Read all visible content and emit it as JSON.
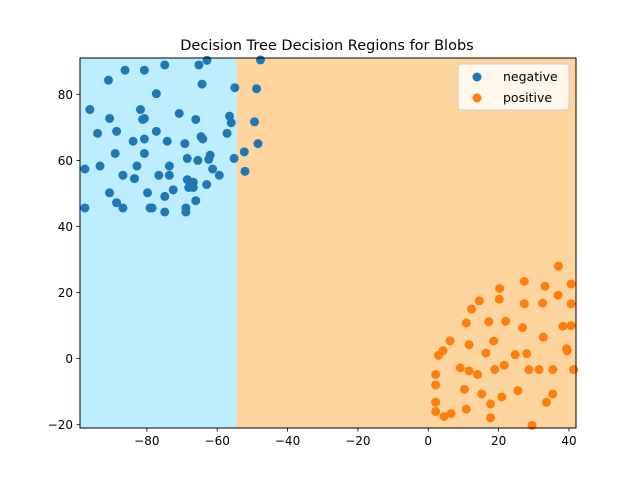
{
  "chart_data": {
    "type": "scatter",
    "title": "Decision Tree Decision Regions for Blobs",
    "xlabel": "",
    "ylabel": "",
    "xlim": [
      -99,
      42
    ],
    "ylim": [
      -21,
      91
    ],
    "x_ticks": [
      -80,
      -60,
      -40,
      -20,
      0,
      20,
      40
    ],
    "y_ticks": [
      -20,
      0,
      20,
      40,
      60,
      80
    ],
    "x_tick_labels": [
      "−80",
      "−60",
      "−40",
      "−20",
      "0",
      "20",
      "40"
    ],
    "y_tick_labels": [
      "−20",
      "0",
      "20",
      "40",
      "60",
      "80"
    ],
    "grid": false,
    "legend_position": "top-right",
    "regions": [
      {
        "x_from": -99,
        "x_to": -54.5,
        "color": "#bdeeff"
      },
      {
        "x_from": -54.5,
        "x_to": 42,
        "color": "#fed59e"
      }
    ],
    "series": [
      {
        "name": "negative",
        "color": "#1f77b4",
        "points": [
          [
            -97.6,
            57.4
          ],
          [
            -97.6,
            45.6
          ],
          [
            -96.2,
            75.4
          ],
          [
            -94.0,
            68.2
          ],
          [
            -93.3,
            58.3
          ],
          [
            -90.9,
            84.3
          ],
          [
            -90.6,
            72.7
          ],
          [
            -90.6,
            50.2
          ],
          [
            -89.0,
            62.1
          ],
          [
            -88.6,
            68.8
          ],
          [
            -88.6,
            47.2
          ],
          [
            -86.8,
            45.6
          ],
          [
            -86.8,
            55.5
          ],
          [
            -86.2,
            87.3
          ],
          [
            -83.9,
            65.8
          ],
          [
            -83.5,
            54.5
          ],
          [
            -82.8,
            58.3
          ],
          [
            -81.8,
            75.4
          ],
          [
            -81.2,
            72.4
          ],
          [
            -80.7,
            87.3
          ],
          [
            -80.7,
            72.7
          ],
          [
            -80.7,
            66.5
          ],
          [
            -80.7,
            62.1
          ],
          [
            -79.8,
            50.2
          ],
          [
            -79.1,
            45.6
          ],
          [
            -78.5,
            45.6
          ],
          [
            -77.3,
            80.2
          ],
          [
            -77.3,
            68.8
          ],
          [
            -76.6,
            55.5
          ],
          [
            -74.9,
            44.4
          ],
          [
            -74.9,
            88.9
          ],
          [
            -74.9,
            49.1
          ],
          [
            -74.2,
            65.8
          ],
          [
            -73.6,
            55.5
          ],
          [
            -73.6,
            58.3
          ],
          [
            -72.5,
            51.1
          ],
          [
            -70.8,
            74.2
          ],
          [
            -69.2,
            65.1
          ],
          [
            -68.9,
            45.6
          ],
          [
            -68.9,
            44.4
          ],
          [
            -68.5,
            54.2
          ],
          [
            -68.5,
            60.6
          ],
          [
            -68.1,
            51.8
          ],
          [
            -66.8,
            53.4
          ],
          [
            -66.8,
            51.8
          ],
          [
            -66.1,
            72.4
          ],
          [
            -66.1,
            47.8
          ],
          [
            -65.5,
            60.0
          ],
          [
            -65.2,
            88.9
          ],
          [
            -64.6,
            67.2
          ],
          [
            -64.1,
            66.5
          ],
          [
            -63.0,
            52.7
          ],
          [
            -62.4,
            60.3
          ],
          [
            -62.0,
            61.6
          ],
          [
            -61.3,
            57.4
          ],
          [
            -59.4,
            55.5
          ],
          [
            -57.2,
            68.2
          ],
          [
            -56.5,
            73.4
          ],
          [
            -56.0,
            71.4
          ],
          [
            -55.2,
            60.6
          ],
          [
            -55.0,
            82.0
          ],
          [
            -52.3,
            62.6
          ],
          [
            -52.1,
            56.7
          ],
          [
            -49.4,
            71.7
          ],
          [
            -48.8,
            81.7
          ],
          [
            -48.4,
            65.1
          ],
          [
            -47.7,
            90.4
          ],
          [
            -64.3,
            83.1
          ],
          [
            -62.9,
            90.3
          ]
        ]
      },
      {
        "name": "positive",
        "color": "#ff7f0e",
        "points": [
          [
            2.1,
            -4.8
          ],
          [
            2.1,
            -8.0
          ],
          [
            2.1,
            -13.2
          ],
          [
            2.1,
            -16.0
          ],
          [
            2.9,
            1.0
          ],
          [
            4.2,
            2.4
          ],
          [
            4.5,
            -17.5
          ],
          [
            6.2,
            5.4
          ],
          [
            6.5,
            -16.6
          ],
          [
            9.1,
            -2.8
          ],
          [
            10.3,
            -9.3
          ],
          [
            10.8,
            10.8
          ],
          [
            10.8,
            -15.3
          ],
          [
            11.6,
            4.2
          ],
          [
            11.6,
            -3.7
          ],
          [
            12.3,
            15.0
          ],
          [
            14.0,
            -4.8
          ],
          [
            14.5,
            17.5
          ],
          [
            15.2,
            -10.7
          ],
          [
            16.4,
            1.7
          ],
          [
            17.2,
            11.2
          ],
          [
            17.7,
            -17.9
          ],
          [
            17.7,
            -13.7
          ],
          [
            18.6,
            5.3
          ],
          [
            18.9,
            -3.3
          ],
          [
            20.2,
            18.0
          ],
          [
            20.3,
            21.2
          ],
          [
            20.9,
            -11.6
          ],
          [
            21.6,
            -2.0
          ],
          [
            22.0,
            11.3
          ],
          [
            24.7,
            1.2
          ],
          [
            25.5,
            -9.7
          ],
          [
            26.8,
            9.4
          ],
          [
            27.3,
            16.6
          ],
          [
            27.3,
            23.4
          ],
          [
            28.0,
            1.5
          ],
          [
            28.6,
            -3.3
          ],
          [
            29.5,
            -20.2
          ],
          [
            31.5,
            -3.3
          ],
          [
            32.5,
            16.8
          ],
          [
            32.7,
            6.5
          ],
          [
            33.2,
            21.9
          ],
          [
            33.6,
            -13.2
          ],
          [
            35.4,
            -10.7
          ],
          [
            35.4,
            -3.3
          ],
          [
            36.9,
            19.2
          ],
          [
            37.0,
            28.0
          ],
          [
            38.3,
            9.8
          ],
          [
            39.3,
            3.0
          ],
          [
            39.5,
            2.4
          ],
          [
            40.6,
            16.6
          ],
          [
            40.6,
            22.6
          ],
          [
            40.6,
            10.0
          ],
          [
            41.3,
            -3.3
          ]
        ]
      }
    ]
  }
}
